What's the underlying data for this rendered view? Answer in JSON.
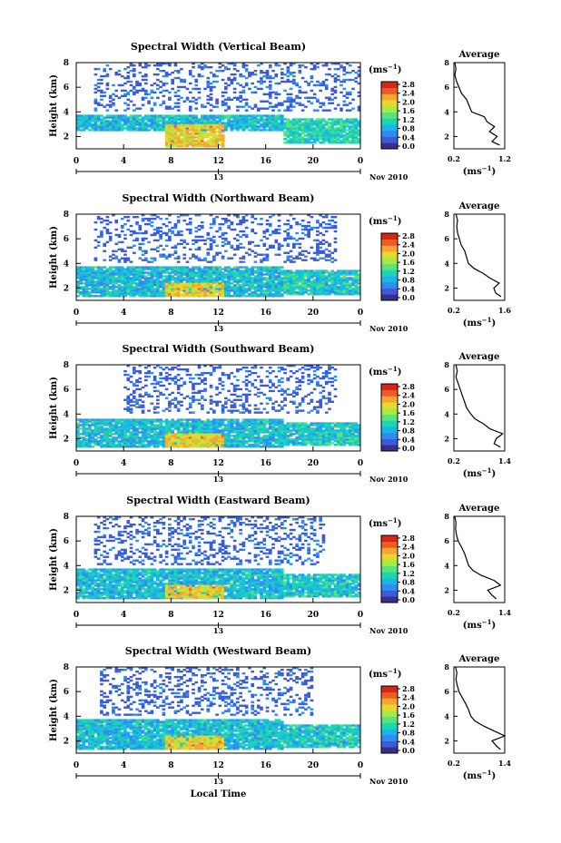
{
  "colors": {
    "background": "#ffffff",
    "frame": "#000000",
    "colormap": [
      "#3a2e86",
      "#3d5bd8",
      "#2f8cf2",
      "#19b7e6",
      "#1dd6b0",
      "#58e47a",
      "#a8ea45",
      "#e7d72f",
      "#f8a431",
      "#ef5b24",
      "#d62714"
    ]
  },
  "x_axis": {
    "label": "Local Time",
    "tick_labels": [
      "0",
      "4",
      "8",
      "12",
      "16",
      "20",
      "0"
    ],
    "date_tick": "13",
    "date_text": "Nov 2010",
    "range": [
      0,
      24
    ]
  },
  "y_axis": {
    "label": "Height (km)",
    "tick_labels": [
      "2",
      "4",
      "6",
      "8"
    ],
    "range": [
      1,
      8
    ]
  },
  "colorbar": {
    "unit": "(ms",
    "unit_exponent": "−1",
    "unit_close": ")",
    "tick_labels": [
      "0.0",
      "0.4",
      "0.8",
      "1.2",
      "1.6",
      "2.0",
      "2.4",
      "2.8"
    ],
    "range": [
      0,
      2.8
    ]
  },
  "profile": {
    "title": "Average",
    "unit": "(ms",
    "unit_exponent": "−1",
    "unit_close": ")",
    "y_tick_labels": [
      "2",
      "4",
      "6",
      "8"
    ]
  },
  "chart_data": [
    {
      "type": "heatmap",
      "title": "Spectral Width (Vertical Beam)",
      "xlabel": "",
      "ylabel": "Height (km)",
      "zlabel": "(ms-1)",
      "xlim": [
        0,
        24
      ],
      "ylim": [
        1,
        8
      ],
      "zlim": [
        0,
        2.8
      ],
      "regions": [
        {
          "x": [
            0,
            17.5
          ],
          "y": [
            2.5,
            3.8
          ],
          "value": 0.9
        },
        {
          "x": [
            7.5,
            12.5
          ],
          "y": [
            1.2,
            3.0
          ],
          "value": 2.0
        },
        {
          "x": [
            17.5,
            24
          ],
          "y": [
            1.4,
            3.5
          ],
          "value": 1.1
        },
        {
          "x": [
            1.5,
            24
          ],
          "y": [
            4.0,
            8.0
          ],
          "value": 0.2
        }
      ],
      "profile": {
        "xlim": [
          0.2,
          1.2
        ],
        "x_tick_labels": [
          "0.2",
          "1.2"
        ],
        "height": [
          1.3,
          1.6,
          2.0,
          2.4,
          2.8,
          3.2,
          3.6,
          4.0,
          4.5,
          5.0,
          5.5,
          6.0,
          6.5,
          7.0,
          7.5,
          8.0
        ],
        "value": [
          1.1,
          0.95,
          1.05,
          0.9,
          1.0,
          0.85,
          0.8,
          0.55,
          0.5,
          0.45,
          0.35,
          0.3,
          0.25,
          0.22,
          0.24,
          0.22
        ]
      }
    },
    {
      "type": "heatmap",
      "title": "Spectral Width (Northward Beam)",
      "xlabel": "",
      "ylabel": "Height (km)",
      "zlabel": "(ms-1)",
      "xlim": [
        0,
        24
      ],
      "ylim": [
        1,
        8
      ],
      "zlim": [
        0,
        2.8
      ],
      "regions": [
        {
          "x": [
            0,
            17.5
          ],
          "y": [
            1.3,
            3.7
          ],
          "value": 0.9
        },
        {
          "x": [
            7.5,
            12.5
          ],
          "y": [
            1.3,
            2.4
          ],
          "value": 2.0
        },
        {
          "x": [
            17.5,
            24
          ],
          "y": [
            1.5,
            3.5
          ],
          "value": 1.0
        },
        {
          "x": [
            1.5,
            22
          ],
          "y": [
            4.0,
            8.0
          ],
          "value": 0.2
        }
      ],
      "profile": {
        "xlim": [
          0.2,
          1.6
        ],
        "x_tick_labels": [
          "0.2",
          "1.6"
        ],
        "height": [
          1.3,
          1.6,
          2.0,
          2.4,
          2.8,
          3.2,
          3.6,
          4.0,
          4.5,
          5.0,
          5.5,
          6.0,
          6.5,
          7.0,
          7.5,
          8.0
        ],
        "value": [
          1.5,
          1.35,
          1.3,
          1.45,
          1.2,
          1.0,
          0.75,
          0.6,
          0.55,
          0.5,
          0.4,
          0.35,
          0.3,
          0.28,
          0.3,
          0.26
        ]
      }
    },
    {
      "type": "heatmap",
      "title": "Spectral Width (Southward Beam)",
      "xlabel": "",
      "ylabel": "Height (km)",
      "zlabel": "(ms-1)",
      "xlim": [
        0,
        24
      ],
      "ylim": [
        1,
        8
      ],
      "zlim": [
        0,
        2.8
      ],
      "regions": [
        {
          "x": [
            0,
            17.5
          ],
          "y": [
            1.3,
            3.6
          ],
          "value": 0.9
        },
        {
          "x": [
            7.5,
            12.5
          ],
          "y": [
            1.3,
            2.4
          ],
          "value": 2.0
        },
        {
          "x": [
            17.5,
            24
          ],
          "y": [
            1.5,
            3.3
          ],
          "value": 1.0
        },
        {
          "x": [
            4,
            22
          ],
          "y": [
            4.0,
            8.0
          ],
          "value": 0.2
        }
      ],
      "profile": {
        "xlim": [
          0.2,
          1.4
        ],
        "x_tick_labels": [
          "0.2",
          "1.4"
        ],
        "height": [
          1.3,
          1.6,
          2.0,
          2.4,
          2.8,
          3.2,
          3.6,
          4.0,
          4.5,
          5.0,
          5.5,
          6.0,
          6.5,
          7.0,
          7.5,
          8.0
        ],
        "value": [
          1.3,
          1.15,
          1.2,
          1.35,
          1.05,
          0.9,
          0.7,
          0.6,
          0.5,
          0.45,
          0.4,
          0.35,
          0.3,
          0.25,
          0.28,
          0.25
        ]
      }
    },
    {
      "type": "heatmap",
      "title": "Spectral Width (Eastward Beam)",
      "xlabel": "",
      "ylabel": "Height (km)",
      "zlabel": "(ms-1)",
      "xlim": [
        0,
        24
      ],
      "ylim": [
        1,
        8
      ],
      "zlim": [
        0,
        2.8
      ],
      "regions": [
        {
          "x": [
            0,
            17.5
          ],
          "y": [
            1.3,
            3.7
          ],
          "value": 0.9
        },
        {
          "x": [
            7.5,
            12.5
          ],
          "y": [
            1.3,
            2.4
          ],
          "value": 2.0
        },
        {
          "x": [
            17.5,
            24
          ],
          "y": [
            1.5,
            3.4
          ],
          "value": 1.0
        },
        {
          "x": [
            1.5,
            21
          ],
          "y": [
            4.0,
            8.0
          ],
          "value": 0.2
        }
      ],
      "profile": {
        "xlim": [
          0.2,
          1.4
        ],
        "x_tick_labels": [
          "0.2",
          "1.4"
        ],
        "height": [
          1.3,
          1.6,
          2.0,
          2.4,
          2.8,
          3.2,
          3.6,
          4.0,
          4.5,
          5.0,
          5.5,
          6.0,
          6.5,
          7.0,
          7.5,
          8.0
        ],
        "value": [
          1.2,
          1.1,
          1.0,
          1.3,
          1.15,
          0.85,
          0.65,
          0.55,
          0.5,
          0.45,
          0.38,
          0.3,
          0.26,
          0.24,
          0.25,
          0.22
        ]
      }
    },
    {
      "type": "heatmap",
      "title": "Spectral Width (Westward Beam)",
      "xlabel": "Local Time",
      "ylabel": "Height (km)",
      "zlabel": "(ms-1)",
      "xlim": [
        0,
        24
      ],
      "ylim": [
        1,
        8
      ],
      "zlim": [
        0,
        2.8
      ],
      "regions": [
        {
          "x": [
            0,
            17.5
          ],
          "y": [
            1.3,
            3.7
          ],
          "value": 0.9
        },
        {
          "x": [
            7.5,
            12.5
          ],
          "y": [
            1.3,
            2.4
          ],
          "value": 2.0
        },
        {
          "x": [
            17.5,
            24
          ],
          "y": [
            1.5,
            3.4
          ],
          "value": 1.0
        },
        {
          "x": [
            2,
            20
          ],
          "y": [
            4.0,
            8.0
          ],
          "value": 0.2
        }
      ],
      "profile": {
        "xlim": [
          0.2,
          1.4
        ],
        "x_tick_labels": [
          "0.2",
          "1.4"
        ],
        "height": [
          1.3,
          1.6,
          2.0,
          2.4,
          2.8,
          3.2,
          3.6,
          4.0,
          4.5,
          5.0,
          5.5,
          6.0,
          6.5,
          7.0,
          7.5,
          8.0
        ],
        "value": [
          1.3,
          1.2,
          1.1,
          1.4,
          1.15,
          0.9,
          0.7,
          0.6,
          0.55,
          0.48,
          0.4,
          0.32,
          0.28,
          0.25,
          0.27,
          0.24
        ]
      }
    }
  ]
}
